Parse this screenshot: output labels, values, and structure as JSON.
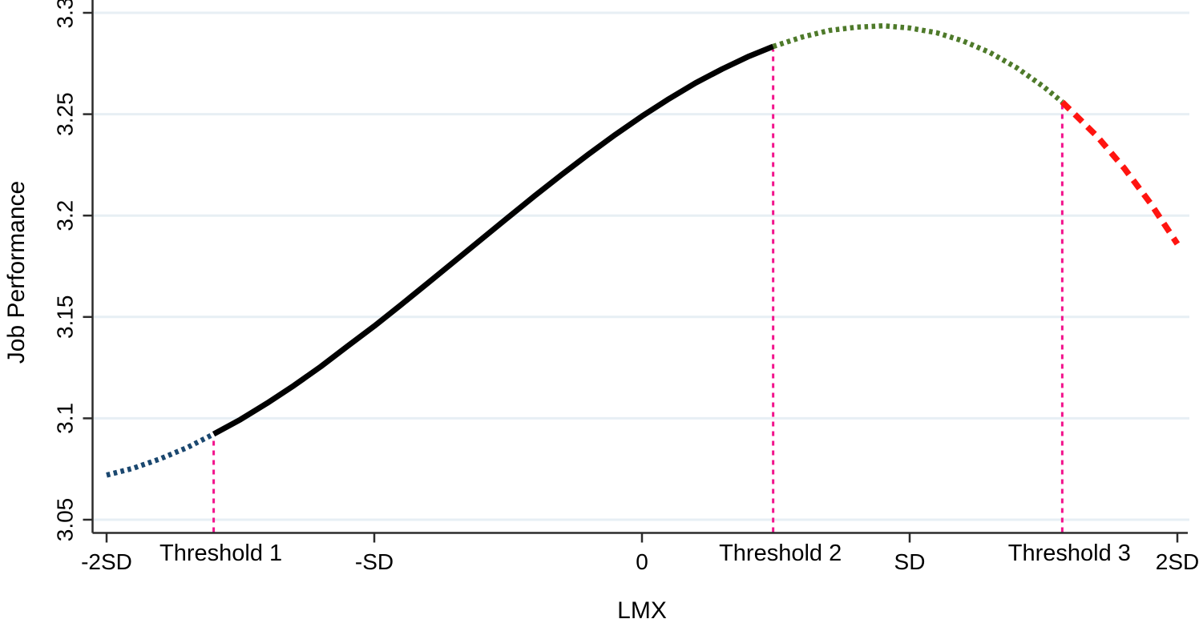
{
  "chart_data": {
    "type": "line",
    "title": "",
    "xlabel": "LMX",
    "ylabel": "Job Performance",
    "grid": "horizontal",
    "grid_color": "#e7eff4",
    "axis_color": "#2b2b2b",
    "background_color": "#ffffff",
    "x_axis": {
      "tick_values": [
        -2,
        -1,
        0,
        1,
        2
      ],
      "tick_labels": [
        "-2SD",
        "-SD",
        "0",
        "SD",
        "2SD"
      ],
      "range": [
        -2.06,
        2.06
      ]
    },
    "y_axis": {
      "tick_values": [
        3.05,
        3.1,
        3.15,
        3.2,
        3.25,
        3.3
      ],
      "tick_labels": [
        "3.05",
        "3.1",
        "3.15",
        "3.2",
        "3.25",
        "3.3"
      ],
      "range": [
        3.043,
        3.306
      ]
    },
    "threshold_line_color": "#f2138c",
    "thresholds": [
      {
        "label": "Threshold 1",
        "x": -1.6,
        "curve_y": 3.0922
      },
      {
        "label": "Threshold 2",
        "x": 0.49,
        "curve_y": 3.2834
      },
      {
        "label": "Threshold 3",
        "x": 1.57,
        "curve_y": 3.256
      }
    ],
    "series": [
      {
        "name": "segment-below-threshold-1",
        "style": "dotted",
        "color": "#1a476f",
        "points": [
          [
            -2.0,
            3.072
          ],
          [
            -1.9,
            3.0754
          ],
          [
            -1.8,
            3.08
          ],
          [
            -1.7,
            3.0855
          ],
          [
            -1.6,
            3.0922
          ]
        ]
      },
      {
        "name": "segment-threshold1-to-threshold2",
        "style": "solid",
        "color": "#000000",
        "points": [
          [
            -1.6,
            3.0922
          ],
          [
            -1.5,
            3.0994
          ],
          [
            -1.4,
            3.1075
          ],
          [
            -1.3,
            3.1162
          ],
          [
            -1.2,
            3.1255
          ],
          [
            -1.1,
            3.1356
          ],
          [
            -1.0,
            3.1455
          ],
          [
            -0.9,
            3.156
          ],
          [
            -0.8,
            3.1667
          ],
          [
            -0.7,
            3.1775
          ],
          [
            -0.6,
            3.1883
          ],
          [
            -0.5,
            3.1991
          ],
          [
            -0.4,
            3.2098
          ],
          [
            -0.3,
            3.2202
          ],
          [
            -0.2,
            3.2302
          ],
          [
            -0.1,
            3.2399
          ],
          [
            0.0,
            3.249
          ],
          [
            0.1,
            3.2575
          ],
          [
            0.2,
            3.2654
          ],
          [
            0.3,
            3.2723
          ],
          [
            0.4,
            3.2786
          ],
          [
            0.49,
            3.2834
          ]
        ]
      },
      {
        "name": "segment-threshold2-to-threshold3",
        "style": "dotted",
        "color": "#4e7a2a",
        "points": [
          [
            0.49,
            3.2834
          ],
          [
            0.6,
            3.2881
          ],
          [
            0.7,
            3.2913
          ],
          [
            0.8,
            3.2929
          ],
          [
            0.9,
            3.2936
          ],
          [
            1.0,
            3.2925
          ],
          [
            1.1,
            3.2902
          ],
          [
            1.2,
            3.2861
          ],
          [
            1.3,
            3.2804
          ],
          [
            1.4,
            3.2729
          ],
          [
            1.5,
            3.2636
          ],
          [
            1.57,
            3.256
          ]
        ]
      },
      {
        "name": "segment-above-threshold-3",
        "style": "dashed",
        "color": "#ff1410",
        "points": [
          [
            1.57,
            3.256
          ],
          [
            1.7,
            3.2391
          ],
          [
            1.8,
            3.2236
          ],
          [
            1.9,
            3.206
          ],
          [
            2.0,
            3.186
          ]
        ]
      }
    ]
  }
}
